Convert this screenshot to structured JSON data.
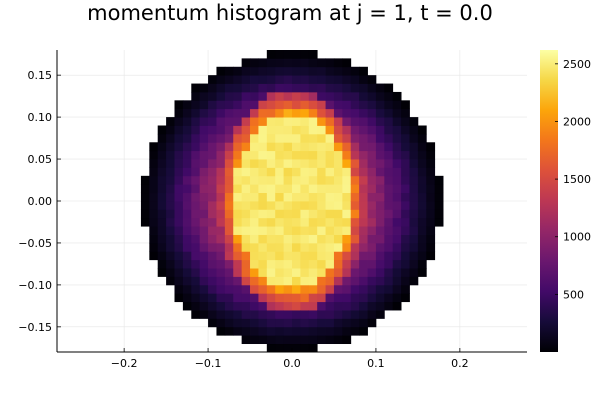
{
  "chart_data": {
    "type": "heatmap",
    "title": "momentum histogram at j = 1, t = 0.0",
    "xlabel": "",
    "ylabel": "",
    "xlim": [
      -0.28,
      0.28
    ],
    "ylim": [
      -0.18,
      0.18
    ],
    "x_ticks": [
      -0.2,
      -0.1,
      0.0,
      0.1,
      0.2
    ],
    "x_tick_labels": [
      "−0.2",
      "−0.1",
      "0.0",
      "0.1",
      "0.2"
    ],
    "y_ticks": [
      -0.15,
      -0.1,
      -0.05,
      0.0,
      0.05,
      0.1,
      0.15
    ],
    "y_tick_labels": [
      "−0.15",
      "−0.10",
      "−0.05",
      "0.00",
      "0.05",
      "0.10",
      "0.15"
    ],
    "colorbar": {
      "min": 0,
      "max": 2620,
      "ticks": [
        500,
        1000,
        1500,
        2000,
        2500
      ],
      "tick_labels": [
        "500",
        "1000",
        "1500",
        "2000",
        "2500"
      ],
      "colormap": "inferno"
    },
    "grid": true,
    "bin_width": 0.01,
    "distribution": {
      "center": [
        0.0,
        0.0
      ],
      "peak_count": 2550,
      "core_radius_x": 0.07,
      "core_radius_y": 0.105,
      "edge_radius": 0.185
    }
  }
}
